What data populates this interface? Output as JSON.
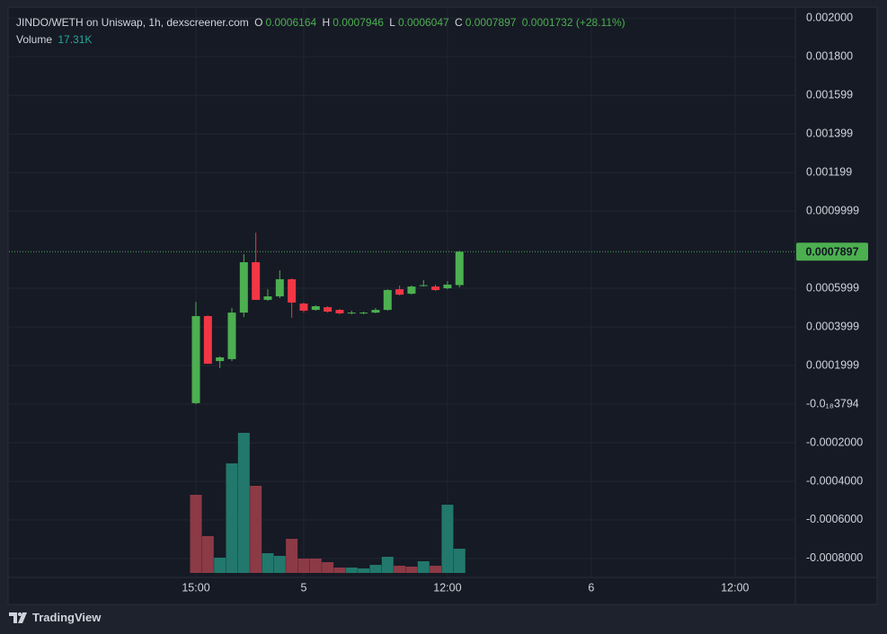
{
  "chart_data": {
    "type": "candlestick",
    "title": "JINDO/WETH on Uniswap, 1h, dexscreener.com",
    "ohlc_names": {
      "open": "O",
      "high": "H",
      "low": "L",
      "close": "C"
    },
    "change_label": "0.0001732 (+28.11%)",
    "volume_legend": {
      "name": "Volume",
      "label": "17.31K"
    },
    "categories": [
      "15:00",
      null,
      null,
      null,
      null,
      null,
      null,
      null,
      null,
      "5",
      null,
      null,
      null,
      null,
      null,
      null,
      null,
      null,
      null,
      null,
      null,
      "12:00",
      null,
      null,
      null,
      null,
      null,
      null,
      null,
      null,
      null,
      null,
      null,
      "6",
      null,
      null,
      null,
      null,
      null,
      null,
      null,
      null,
      null,
      null,
      null,
      "12:00"
    ],
    "open": [
      5e-06,
      0.000456,
      0.000223,
      0.000233,
      0.000474,
      0.000735,
      0.00054,
      0.000558,
      0.000647,
      0.000521,
      0.000488,
      0.000502,
      0.000488,
      0.00047,
      0.000472,
      0.000474,
      0.000488,
      0.000595,
      0.000572,
      0.000612,
      0.000609,
      0.0006,
      0.0006164,
      null,
      null,
      null,
      null,
      null,
      null,
      null,
      null,
      null,
      null,
      null,
      null,
      null,
      null,
      null,
      null,
      null,
      null,
      null,
      null,
      null,
      null,
      null
    ],
    "high": [
      0.00053,
      0.00046,
      0.000247,
      0.000498,
      0.000777,
      0.000888,
      0.000595,
      0.000693,
      0.000651,
      0.000526,
      0.000512,
      0.000507,
      0.000493,
      0.000484,
      0.000479,
      0.000498,
      0.000595,
      0.000614,
      0.000614,
      0.000642,
      0.000619,
      0.000637,
      0.0007946,
      null,
      null,
      null,
      null,
      null,
      null,
      null,
      null,
      null,
      null,
      null,
      null,
      null,
      null,
      null,
      null,
      null,
      null,
      null,
      null,
      null,
      null,
      null
    ],
    "low": [
      0,
      0.000209,
      0.000186,
      0.000223,
      0.000451,
      0.00054,
      0.000535,
      0.000549,
      0.000447,
      0.000474,
      0.000484,
      0.000474,
      0.000465,
      0.000465,
      0.000465,
      0.00047,
      0.000484,
      0.000563,
      0.000567,
      0.000609,
      0.000586,
      0.000595,
      0.0006047,
      null,
      null,
      null,
      null,
      null,
      null,
      null,
      null,
      null,
      null,
      null,
      null,
      null,
      null,
      null,
      null,
      null,
      null,
      null,
      null,
      null,
      null,
      null
    ],
    "close": [
      0.000456,
      0.000209,
      0.000242,
      0.000474,
      0.000735,
      0.00054,
      0.000558,
      0.000647,
      0.000526,
      0.000484,
      0.000507,
      0.000479,
      0.00047,
      0.000474,
      0.000474,
      0.000488,
      0.000591,
      0.000567,
      0.000609,
      0.000616,
      0.000591,
      0.000619,
      0.0007897,
      null,
      null,
      null,
      null,
      null,
      null,
      null,
      null,
      null,
      null,
      null,
      null,
      null,
      null,
      null,
      null,
      null,
      null,
      null,
      null,
      null,
      null,
      null
    ],
    "volume": [
      55770,
      26280,
      10900,
      78200,
      100000,
      62180,
      14100,
      12180,
      24360,
      10260,
      10260,
      7690,
      3850,
      3850,
      3210,
      5770,
      11540,
      5130,
      4490,
      8330,
      5130,
      48720,
      17310,
      null,
      null,
      null,
      null,
      null,
      null,
      null,
      null,
      null,
      null,
      null,
      null,
      null,
      null,
      null,
      null,
      null,
      null,
      null,
      null,
      null,
      null,
      null
    ],
    "volume_colors": [
      "#8c3a46",
      "#8c3a46",
      "#22786c",
      "#22786c",
      "#22786c",
      "#8c3a46",
      "#22786c",
      "#22786c",
      "#8c3a46",
      "#8c3a46",
      "#8c3a46",
      "#8c3a46",
      "#8c3a46",
      "#22786c",
      "#22786c",
      "#22786c",
      "#22786c",
      "#8c3a46",
      "#8c3a46",
      "#22786c",
      "#8c3a46",
      "#22786c",
      "#22786c",
      null,
      null,
      null,
      null,
      null,
      null,
      null,
      null,
      null,
      null,
      null,
      null,
      null,
      null,
      null,
      null,
      null,
      null,
      null,
      null,
      null,
      null,
      null
    ],
    "up_color": "#4caf50",
    "down_color": "#f23645",
    "ylim": [
      -0.000898,
      0.002047
    ],
    "yticks": [
      {
        "value": 0.002,
        "label": "0.002000"
      },
      {
        "value": 0.0018,
        "label": "0.001800"
      },
      0.001599,
      0.001399,
      0.001199,
      0.0009999,
      0.0005999,
      0.0003999,
      0.0001999,
      {
        "value": -3.794e-20,
        "label": "-0.0₁₈3794"
      },
      {
        "value": -0.0002,
        "label": "-0.0002000"
      },
      {
        "value": -0.0004,
        "label": "-0.0004000"
      },
      {
        "value": -0.0006,
        "label": "-0.0006000"
      },
      {
        "value": -0.0008,
        "label": "-0.0008000"
      }
    ],
    "grid": true
  },
  "branding": "TradingView"
}
